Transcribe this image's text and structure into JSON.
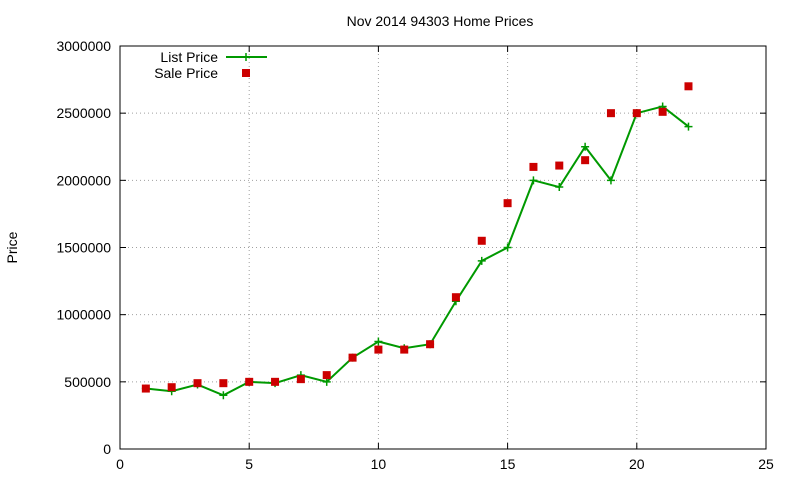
{
  "chart_data": {
    "type": "line",
    "title": "Nov 2014 94303 Home Prices",
    "xlabel": "",
    "ylabel": "Price",
    "xlim": [
      0,
      25
    ],
    "ylim": [
      0,
      3000000
    ],
    "xticks": [
      0,
      5,
      10,
      15,
      20,
      25
    ],
    "yticks": [
      0,
      500000,
      1000000,
      1500000,
      2000000,
      2500000,
      3000000
    ],
    "grid": true,
    "legend_position": "top-left",
    "series": [
      {
        "name": "List Price",
        "style": "line-plus",
        "color": "#009900",
        "x": [
          1,
          2,
          3,
          4,
          5,
          6,
          7,
          8,
          9,
          10,
          11,
          12,
          13,
          14,
          15,
          16,
          17,
          18,
          19,
          20,
          21,
          22
        ],
        "y": [
          450000,
          430000,
          480000,
          400000,
          500000,
          490000,
          550000,
          500000,
          680000,
          800000,
          750000,
          780000,
          1100000,
          1400000,
          1500000,
          2000000,
          1950000,
          2250000,
          2000000,
          2500000,
          2550000,
          2400000
        ]
      },
      {
        "name": "Sale Price",
        "style": "points-square",
        "color": "#cc0000",
        "x": [
          1,
          2,
          3,
          4,
          5,
          6,
          7,
          8,
          9,
          10,
          11,
          12,
          13,
          14,
          15,
          16,
          17,
          18,
          19,
          20,
          21,
          22
        ],
        "y": [
          450000,
          460000,
          490000,
          490000,
          500000,
          500000,
          520000,
          550000,
          680000,
          740000,
          740000,
          780000,
          1130000,
          1550000,
          1830000,
          2100000,
          2110000,
          2150000,
          2500000,
          2500000,
          2510000,
          2700000
        ]
      }
    ]
  }
}
